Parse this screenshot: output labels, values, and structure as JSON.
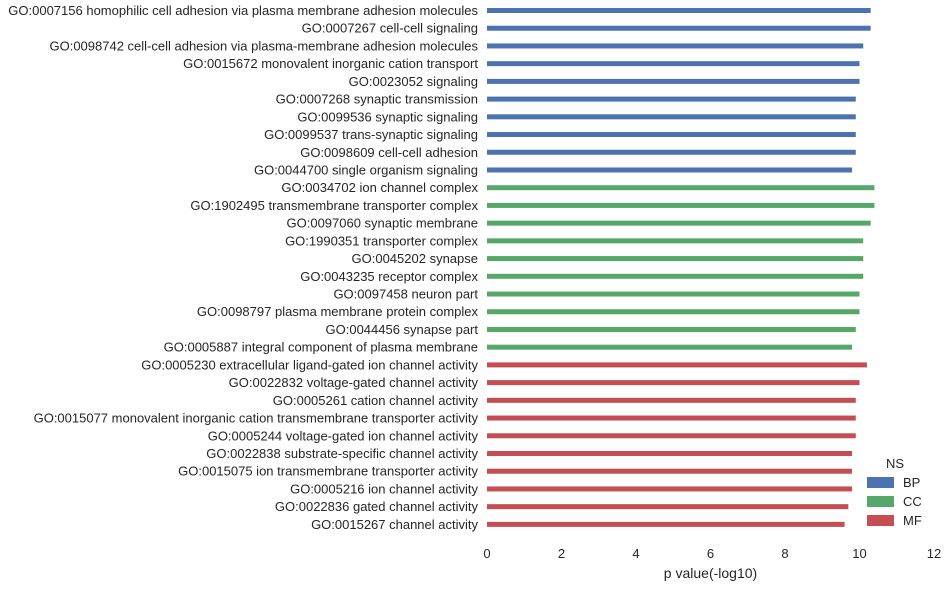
{
  "chart_data": {
    "type": "bar",
    "orientation": "horizontal",
    "xlabel": "p value(-log10)",
    "ylabel": "",
    "xlim": [
      0,
      12
    ],
    "xticks": [
      "0",
      "2",
      "4",
      "6",
      "8",
      "10",
      "12"
    ],
    "grid": false,
    "legend": {
      "title": "NS",
      "placement": "bottom-right",
      "entries": [
        {
          "label": "BP",
          "color": "#4c72b0"
        },
        {
          "label": "CC",
          "color": "#55a868"
        },
        {
          "label": "MF",
          "color": "#c44e52"
        }
      ]
    },
    "bars": [
      {
        "category": "GO:0007156 homophilic cell adhesion via plasma membrane adhesion molecules",
        "group": "BP",
        "value": 10.3
      },
      {
        "category": "GO:0007267 cell-cell signaling",
        "group": "BP",
        "value": 10.3
      },
      {
        "category": "GO:0098742 cell-cell adhesion via plasma-membrane adhesion molecules",
        "group": "BP",
        "value": 10.1
      },
      {
        "category": "GO:0015672 monovalent inorganic cation transport",
        "group": "BP",
        "value": 10.0
      },
      {
        "category": "GO:0023052 signaling",
        "group": "BP",
        "value": 10.0
      },
      {
        "category": "GO:0007268 synaptic transmission",
        "group": "BP",
        "value": 9.9
      },
      {
        "category": "GO:0099536 synaptic signaling",
        "group": "BP",
        "value": 9.9
      },
      {
        "category": "GO:0099537 trans-synaptic signaling",
        "group": "BP",
        "value": 9.9
      },
      {
        "category": "GO:0098609 cell-cell adhesion",
        "group": "BP",
        "value": 9.9
      },
      {
        "category": "GO:0044700 single organism signaling",
        "group": "BP",
        "value": 9.8
      },
      {
        "category": "GO:0034702 ion channel complex",
        "group": "CC",
        "value": 10.4
      },
      {
        "category": "GO:1902495 transmembrane transporter complex",
        "group": "CC",
        "value": 10.4
      },
      {
        "category": "GO:0097060 synaptic membrane",
        "group": "CC",
        "value": 10.3
      },
      {
        "category": "GO:1990351 transporter complex",
        "group": "CC",
        "value": 10.1
      },
      {
        "category": "GO:0045202 synapse",
        "group": "CC",
        "value": 10.1
      },
      {
        "category": "GO:0043235 receptor complex",
        "group": "CC",
        "value": 10.1
      },
      {
        "category": "GO:0097458 neuron part",
        "group": "CC",
        "value": 10.0
      },
      {
        "category": "GO:0098797 plasma membrane protein complex",
        "group": "CC",
        "value": 10.0
      },
      {
        "category": "GO:0044456 synapse part",
        "group": "CC",
        "value": 9.9
      },
      {
        "category": "GO:0005887 integral component of plasma membrane",
        "group": "CC",
        "value": 9.8
      },
      {
        "category": "GO:0005230 extracellular ligand-gated ion channel activity",
        "group": "MF",
        "value": 10.2
      },
      {
        "category": "GO:0022832 voltage-gated channel activity",
        "group": "MF",
        "value": 10.0
      },
      {
        "category": "GO:0005261 cation channel activity",
        "group": "MF",
        "value": 9.9
      },
      {
        "category": "GO:0015077 monovalent inorganic cation transmembrane transporter activity",
        "group": "MF",
        "value": 9.9
      },
      {
        "category": "GO:0005244 voltage-gated ion channel activity",
        "group": "MF",
        "value": 9.9
      },
      {
        "category": "GO:0022838 substrate-specific channel activity",
        "group": "MF",
        "value": 9.8
      },
      {
        "category": "GO:0015075 ion transmembrane transporter activity",
        "group": "MF",
        "value": 9.8
      },
      {
        "category": "GO:0005216 ion channel activity",
        "group": "MF",
        "value": 9.8
      },
      {
        "category": "GO:0022836 gated channel activity",
        "group": "MF",
        "value": 9.7
      },
      {
        "category": "GO:0015267 channel activity",
        "group": "MF",
        "value": 9.6
      }
    ]
  }
}
